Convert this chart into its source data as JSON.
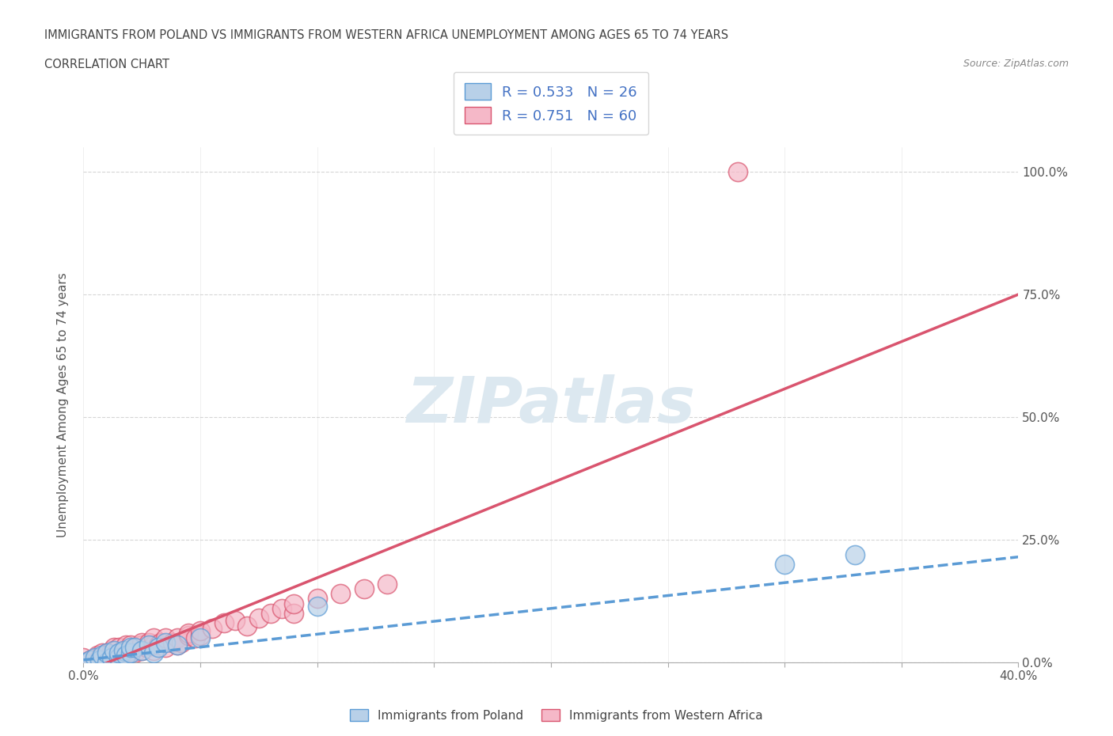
{
  "title_line1": "IMMIGRANTS FROM POLAND VS IMMIGRANTS FROM WESTERN AFRICA UNEMPLOYMENT AMONG AGES 65 TO 74 YEARS",
  "title_line2": "CORRELATION CHART",
  "source_text": "Source: ZipAtlas.com",
  "ylabel": "Unemployment Among Ages 65 to 74 years",
  "xlim": [
    0.0,
    0.4
  ],
  "ylim": [
    0.0,
    1.05
  ],
  "x_ticks": [
    0.0,
    0.05,
    0.1,
    0.15,
    0.2,
    0.25,
    0.3,
    0.35,
    0.4
  ],
  "x_tick_labels": [
    "0.0%",
    "",
    "",
    "",
    "",
    "",
    "",
    "",
    "40.0%"
  ],
  "y_ticks": [
    0.0,
    0.25,
    0.5,
    0.75,
    1.0
  ],
  "y_tick_labels": [
    "0.0%",
    "25.0%",
    "50.0%",
    "75.0%",
    "100.0%"
  ],
  "poland_R": 0.533,
  "poland_N": 26,
  "western_africa_R": 0.751,
  "western_africa_N": 60,
  "poland_color": "#b8d0e8",
  "poland_line_color": "#5b9bd5",
  "western_africa_color": "#f5b8c8",
  "western_africa_line_color": "#d9546e",
  "watermark_text": "ZIPatlas",
  "watermark_color": "#dce8f0",
  "text_color": "#4472c4",
  "legend_label_1": "R = 0.533   N = 26",
  "legend_label_2": "R = 0.751   N = 60",
  "bottom_label_1": "Immigrants from Poland",
  "bottom_label_2": "Immigrants from Western Africa",
  "poland_line_x": [
    0.0,
    0.4
  ],
  "poland_line_y": [
    0.005,
    0.215
  ],
  "western_africa_line_x": [
    0.0,
    0.4
  ],
  "western_africa_line_y": [
    -0.02,
    0.75
  ],
  "poland_scatter_x": [
    0.0,
    0.003,
    0.005,
    0.007,
    0.008,
    0.01,
    0.01,
    0.012,
    0.013,
    0.015,
    0.015,
    0.017,
    0.018,
    0.02,
    0.02,
    0.022,
    0.025,
    0.028,
    0.03,
    0.032,
    0.035,
    0.04,
    0.05,
    0.1,
    0.3,
    0.33
  ],
  "poland_scatter_y": [
    0.0,
    0.005,
    0.01,
    0.005,
    0.015,
    0.0,
    0.02,
    0.01,
    0.025,
    0.01,
    0.02,
    0.025,
    0.015,
    0.02,
    0.03,
    0.03,
    0.025,
    0.035,
    0.02,
    0.03,
    0.04,
    0.035,
    0.05,
    0.115,
    0.2,
    0.22
  ],
  "western_africa_scatter_x": [
    0.0,
    0.0,
    0.003,
    0.005,
    0.006,
    0.007,
    0.008,
    0.009,
    0.01,
    0.01,
    0.012,
    0.012,
    0.013,
    0.013,
    0.015,
    0.015,
    0.015,
    0.017,
    0.018,
    0.018,
    0.02,
    0.02,
    0.02,
    0.022,
    0.022,
    0.025,
    0.025,
    0.025,
    0.027,
    0.028,
    0.03,
    0.03,
    0.03,
    0.032,
    0.033,
    0.035,
    0.035,
    0.038,
    0.04,
    0.04,
    0.042,
    0.045,
    0.045,
    0.048,
    0.05,
    0.05,
    0.055,
    0.06,
    0.065,
    0.07,
    0.075,
    0.08,
    0.085,
    0.09,
    0.09,
    0.1,
    0.11,
    0.12,
    0.13,
    0.28
  ],
  "western_africa_scatter_y": [
    0.0,
    0.01,
    0.005,
    0.008,
    0.015,
    0.01,
    0.02,
    0.015,
    0.005,
    0.02,
    0.01,
    0.025,
    0.015,
    0.03,
    0.01,
    0.02,
    0.03,
    0.02,
    0.025,
    0.035,
    0.015,
    0.025,
    0.035,
    0.02,
    0.03,
    0.025,
    0.035,
    0.04,
    0.03,
    0.04,
    0.025,
    0.035,
    0.05,
    0.035,
    0.04,
    0.03,
    0.05,
    0.04,
    0.035,
    0.05,
    0.04,
    0.055,
    0.06,
    0.05,
    0.055,
    0.065,
    0.07,
    0.08,
    0.085,
    0.075,
    0.09,
    0.1,
    0.11,
    0.1,
    0.12,
    0.13,
    0.14,
    0.15,
    0.16,
    1.0
  ]
}
